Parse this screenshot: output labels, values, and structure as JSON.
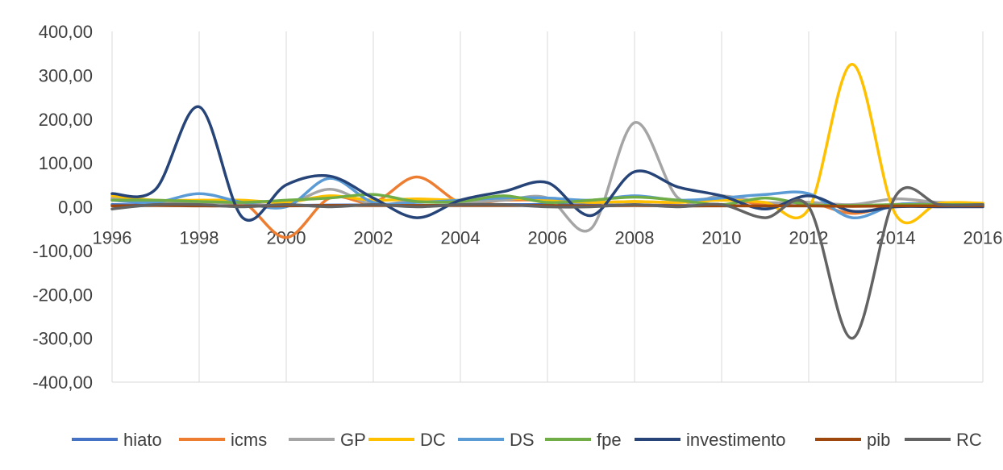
{
  "chart_data": {
    "type": "line",
    "title": "",
    "xlabel": "",
    "ylabel": "",
    "xlim": [
      1996,
      2016
    ],
    "ylim": [
      -400,
      400
    ],
    "y_tick_values": [
      -400,
      -300,
      -200,
      -100,
      0,
      100,
      200,
      300,
      400
    ],
    "y_tick_labels": [
      "-400,00",
      "-300,00",
      "-200,00",
      "-100,00",
      "0,00",
      "100,00",
      "200,00",
      "300,00",
      "400,00"
    ],
    "x_tick_values": [
      1996,
      1998,
      2000,
      2002,
      2004,
      2006,
      2008,
      2010,
      2012,
      2014,
      2016
    ],
    "x_tick_labels": [
      "1996",
      "1998",
      "2000",
      "2002",
      "2004",
      "2006",
      "2008",
      "2010",
      "2012",
      "2014",
      "2016"
    ],
    "grid": "vertical",
    "legend_position": "bottom",
    "x": [
      1996,
      1997,
      1998,
      1999,
      2000,
      2001,
      2002,
      2003,
      2004,
      2005,
      2006,
      2007,
      2008,
      2009,
      2010,
      2011,
      2012,
      2013,
      2014,
      2015,
      2016
    ],
    "series": [
      {
        "name": "hiato",
        "color": "#4472c4",
        "values": [
          5,
          4,
          3,
          2,
          3,
          4,
          4,
          3,
          4,
          5,
          5,
          4,
          4,
          3,
          3,
          2,
          3,
          2,
          3,
          3,
          3
        ]
      },
      {
        "name": "icms",
        "color": "#ed7d31",
        "values": [
          18,
          10,
          10,
          10,
          -70,
          20,
          10,
          68,
          10,
          15,
          15,
          10,
          12,
          10,
          20,
          5,
          10,
          -15,
          5,
          8,
          5
        ]
      },
      {
        "name": "GP",
        "color": "#a5a5a5",
        "values": [
          20,
          10,
          10,
          8,
          5,
          40,
          5,
          15,
          10,
          15,
          20,
          -50,
          192,
          20,
          25,
          10,
          10,
          5,
          18,
          10,
          8
        ]
      },
      {
        "name": "DC",
        "color": "#ffc000",
        "values": [
          25,
          15,
          15,
          15,
          10,
          25,
          15,
          18,
          15,
          20,
          15,
          10,
          12,
          10,
          15,
          10,
          -5,
          325,
          -18,
          8,
          8
        ]
      },
      {
        "name": "DS",
        "color": "#5b9bd5",
        "values": [
          15,
          10,
          30,
          10,
          0,
          65,
          10,
          10,
          15,
          20,
          20,
          15,
          25,
          15,
          20,
          28,
          30,
          -25,
          5,
          5,
          5
        ]
      },
      {
        "name": "fpe",
        "color": "#70ad47",
        "values": [
          15,
          15,
          12,
          10,
          15,
          20,
          28,
          12,
          12,
          25,
          10,
          15,
          22,
          15,
          5,
          20,
          5,
          3,
          5,
          5,
          5
        ]
      },
      {
        "name": "investimento",
        "color": "#264478",
        "values": [
          30,
          40,
          228,
          -25,
          50,
          70,
          20,
          -25,
          15,
          35,
          55,
          -20,
          80,
          45,
          25,
          -5,
          25,
          -10,
          0,
          0,
          0
        ]
      },
      {
        "name": "pib",
        "color": "#9e480e",
        "values": [
          2,
          3,
          2,
          2,
          2,
          3,
          3,
          3,
          3,
          3,
          3,
          2,
          3,
          2,
          2,
          2,
          2,
          1,
          2,
          2,
          2
        ]
      },
      {
        "name": "RC",
        "color": "#636363",
        "values": [
          -5,
          5,
          5,
          0,
          5,
          0,
          5,
          0,
          5,
          5,
          0,
          0,
          5,
          0,
          5,
          -25,
          0,
          -300,
          25,
          5,
          5
        ]
      }
    ]
  }
}
